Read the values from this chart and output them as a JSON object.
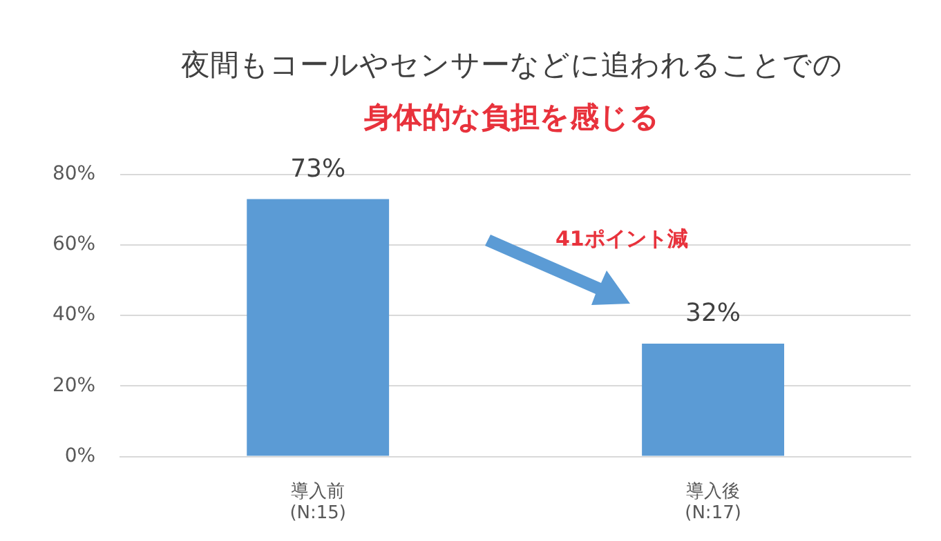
{
  "chart_data": {
    "type": "bar",
    "title": "夜間もコールやセンサーなどに追われることでの",
    "subtitle": "身体的な負担を感じる",
    "categories": [
      "導入前\n(N:15)",
      "導入後\n(N:17)"
    ],
    "values": [
      73,
      32
    ],
    "color": "#5b9bd5",
    "value_labels": [
      "73%",
      "32%"
    ],
    "ylim": [
      0,
      80
    ],
    "yticks": [
      {
        "value": 0,
        "label": "0%"
      },
      {
        "value": 20,
        "label": "20%"
      },
      {
        "value": 40,
        "label": "40%"
      },
      {
        "value": 60,
        "label": "60%"
      },
      {
        "value": 80,
        "label": "80%"
      }
    ],
    "grid": "y",
    "legend": false,
    "annotations": [
      "41ポイント減"
    ]
  }
}
